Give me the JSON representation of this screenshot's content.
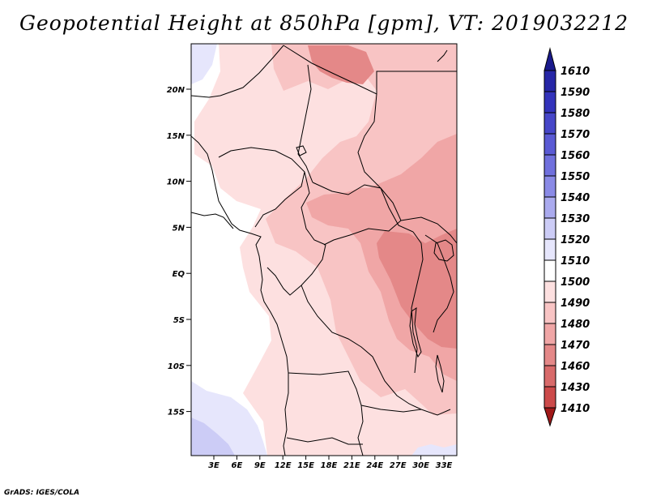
{
  "title": "Geopotential Height at 850hPa [gpm], VT: 2019032212",
  "credit": "GrADS: IGES/COLA",
  "map": {
    "region": "Central Africa",
    "variable": "Geopotential Height",
    "level": "850hPa",
    "units": "gpm",
    "valid_time": "2019032212",
    "lat_labels": [
      "20N",
      "15N",
      "10N",
      "5N",
      "EQ",
      "5S",
      "10S",
      "15S"
    ],
    "lon_labels": [
      "3E",
      "6E",
      "9E",
      "12E",
      "15E",
      "18E",
      "21E",
      "24E",
      "27E",
      "30E",
      "33E"
    ]
  },
  "colorbar": {
    "levels": [
      "1610",
      "1590",
      "1580",
      "1570",
      "1560",
      "1550",
      "1540",
      "1530",
      "1520",
      "1510",
      "1500",
      "1490",
      "1480",
      "1470",
      "1460",
      "1430",
      "1410"
    ],
    "colors": [
      "#1a1a8c",
      "#2626a6",
      "#3333bb",
      "#4646c8",
      "#5a5ad4",
      "#7070dd",
      "#8a8ae6",
      "#aaaaee",
      "#ccccf6",
      "#e6e6fc",
      "#ffffff",
      "#fde0e0",
      "#f8c4c4",
      "#f0a6a6",
      "#e48888",
      "#d86a6a",
      "#cc4a4a",
      "#bb2e2e",
      "#a01818"
    ]
  },
  "field_colors": {
    "h1520": "#ccccf6",
    "h1510": "#e6e6fc",
    "h1505": "#ffffff",
    "h1500": "#fde0e0",
    "h1495": "#f8c4c4",
    "h1490": "#f0a6a6",
    "h1485": "#e48888",
    "border": "#000000"
  }
}
